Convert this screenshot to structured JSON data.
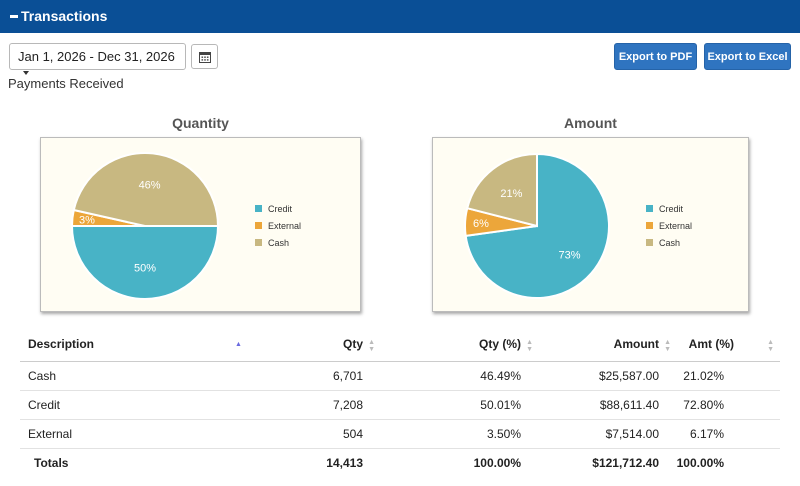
{
  "header": {
    "title": "Transactions"
  },
  "toolbar": {
    "date_range": "Jan 1, 2026 - Dec 31, 2026",
    "export_pdf": "Export to PDF",
    "export_excel": "Export to Excel"
  },
  "section_label": "Payments Received",
  "colors": {
    "credit": "#48b3c6",
    "external": "#eca63a",
    "cash": "#c8b881",
    "header": "#0a4f96",
    "button": "#2f74c0"
  },
  "chart_data": [
    {
      "type": "pie",
      "title": "Quantity",
      "legend_position": "right",
      "legend": [
        "Credit",
        "External",
        "Cash"
      ],
      "slices": [
        {
          "name": "Credit",
          "value": 50.01,
          "label": "50%"
        },
        {
          "name": "External",
          "value": 3.5,
          "label": "3%"
        },
        {
          "name": "Cash",
          "value": 46.49,
          "label": "46%"
        }
      ]
    },
    {
      "type": "pie",
      "title": "Amount",
      "legend_position": "right",
      "legend": [
        "Credit",
        "External",
        "Cash"
      ],
      "slices": [
        {
          "name": "Credit",
          "value": 72.8,
          "label": "73%"
        },
        {
          "name": "External",
          "value": 6.17,
          "label": "6%"
        },
        {
          "name": "Cash",
          "value": 21.02,
          "label": "21%"
        }
      ]
    }
  ],
  "table": {
    "headers": [
      "Description",
      "Qty",
      "Qty (%)",
      "Amount",
      "Amt (%)"
    ],
    "rows": [
      [
        "Cash",
        "6,701",
        "46.49%",
        "$25,587.00",
        "21.02%"
      ],
      [
        "Credit",
        "7,208",
        "50.01%",
        "$88,611.40",
        "72.80%"
      ],
      [
        "External",
        "504",
        "3.50%",
        "$7,514.00",
        "6.17%"
      ]
    ],
    "totals": [
      "Totals",
      "14,413",
      "100.00%",
      "$121,712.40",
      "100.00%"
    ]
  }
}
